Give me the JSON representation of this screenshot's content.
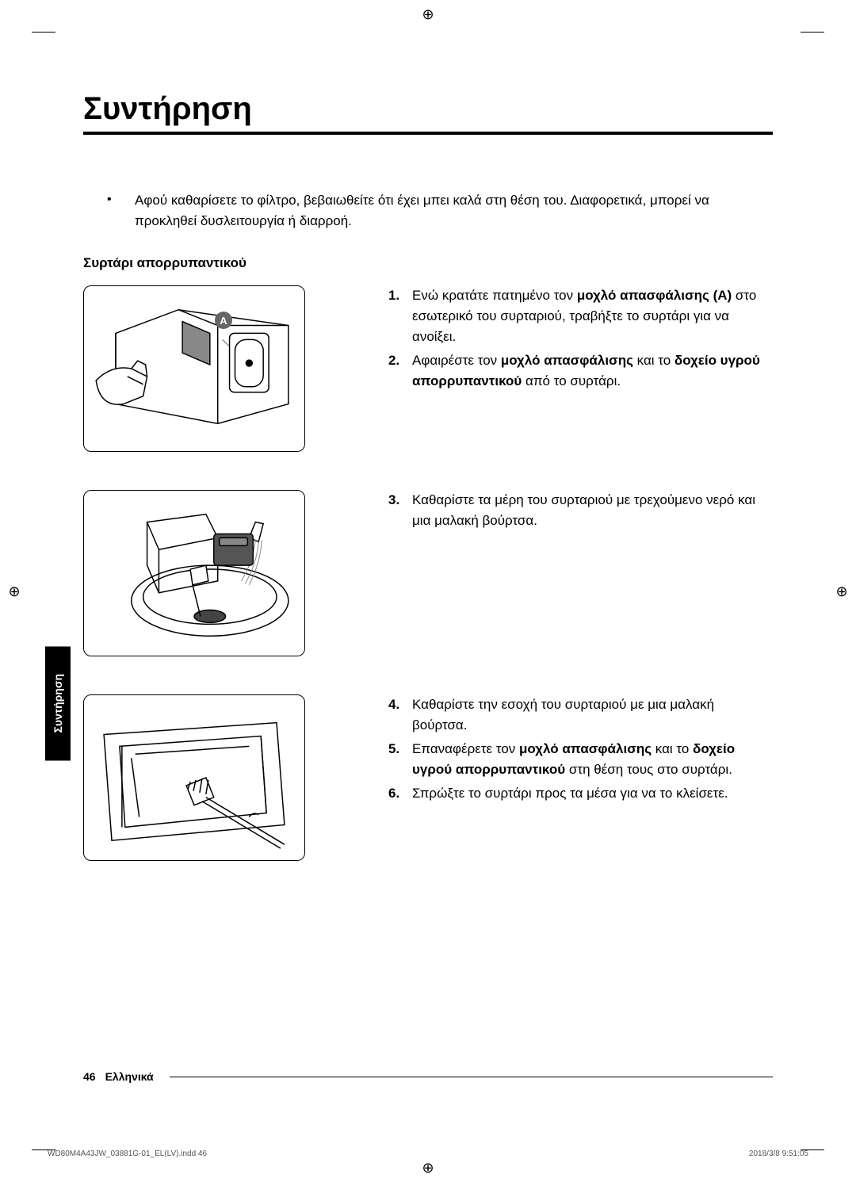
{
  "page": {
    "title": "Συντήρηση",
    "sideTab": "Συντήρηση",
    "bullet": "Αφού καθαρίσετε το φίλτρο, βεβαιωθείτε ότι έχει μπει καλά στη θέση του. Διαφορετικά, μπορεί να προκληθεί δυσλειτουργία ή διαρροή.",
    "subsection": "Συρτάρι απορρυπαντικού",
    "labelA": "A",
    "steps1": [
      {
        "num": "1.",
        "html": "Ενώ κρατάτε πατημένο τον <b>μοχλό απασφάλισης (A)</b> στο εσωτερικό του συρταριού, τραβήξτε το συρτάρι για να ανοίξει."
      },
      {
        "num": "2.",
        "html": "Αφαιρέστε τον <b>μοχλό απασφάλισης</b> και το <b>δοχείο υγρού απορρυπαντικού</b> από το συρτάρι."
      }
    ],
    "steps2": [
      {
        "num": "3.",
        "html": "Καθαρίστε τα μέρη του συρταριού με τρεχούμενο νερό και μια μαλακή βούρτσα."
      }
    ],
    "steps3": [
      {
        "num": "4.",
        "html": "Καθαρίστε την εσοχή του συρταριού με μια μαλακή βούρτσα."
      },
      {
        "num": "5.",
        "html": "Επαναφέρετε τον <b>μοχλό απασφάλισης</b> και το <b>δοχείο υγρού απορρυπαντικού</b> στη θέση τους στο συρτάρι."
      },
      {
        "num": "6.",
        "html": "Σπρώξτε το συρτάρι προς τα μέσα για να το κλείσετε."
      }
    ],
    "footer": {
      "pageNum": "46",
      "lang": "Ελληνικά"
    },
    "meta": {
      "file": "WD80M4A43JW_03881G-01_EL(LV).indd   46",
      "timestamp": "2018/3/8   9:51:05"
    }
  }
}
